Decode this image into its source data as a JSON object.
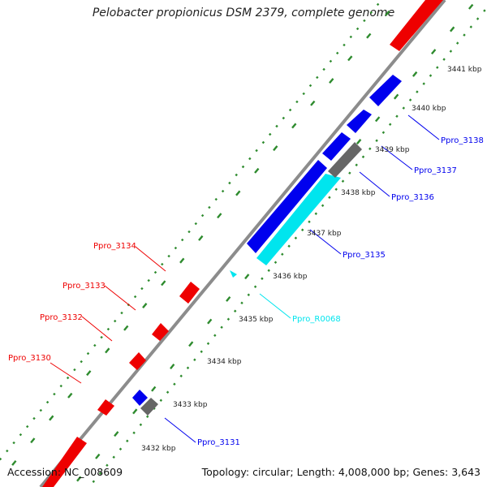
{
  "title": "Pelobacter propionicus DSM 2379, complete genome",
  "footer": {
    "accession": "Accession: NC_008609",
    "topology": "Topology: circular; Length: 4,008,000 bp; Genes: 3,643"
  },
  "colors": {
    "forward_gene": "#0000ee",
    "reverse_gene": "#ee0000",
    "rna_gene": "#00e5ee",
    "other_gene": "#666666",
    "backbone": "#8c8c8c",
    "tick": "#2e8b2e",
    "label_text": "#222222"
  },
  "ticks": [
    "3432 kbp",
    "3433 kbp",
    "3434 kbp",
    "3435 kbp",
    "3436 kbp",
    "3437 kbp",
    "3438 kbp",
    "3439 kbp",
    "3440 kbp",
    "3441 kbp"
  ],
  "genes": [
    {
      "name": "Ppro_3130",
      "type": "reverse"
    },
    {
      "name": "Ppro_3131",
      "type": "forward"
    },
    {
      "name": "Ppro_3132",
      "type": "reverse"
    },
    {
      "name": "Ppro_3133",
      "type": "reverse"
    },
    {
      "name": "Ppro_3134",
      "type": "reverse"
    },
    {
      "name": "Ppro_R0068",
      "type": "rna"
    },
    {
      "name": "Ppro_3135",
      "type": "forward"
    },
    {
      "name": "Ppro_3136",
      "type": "forward"
    },
    {
      "name": "Ppro_3137",
      "type": "forward"
    },
    {
      "name": "Ppro_3138",
      "type": "forward"
    }
  ]
}
